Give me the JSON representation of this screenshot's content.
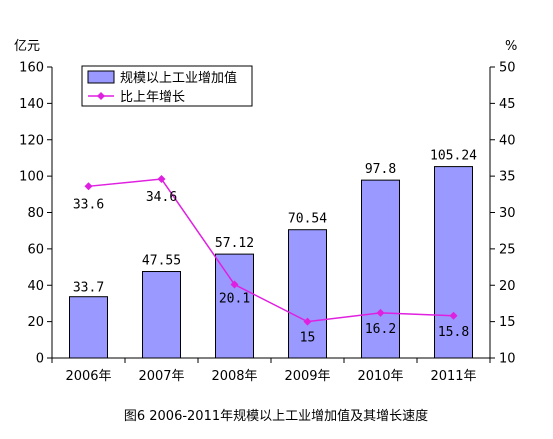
{
  "chart_data": {
    "type": "bar",
    "categories": [
      "2006年",
      "2007年",
      "2008年",
      "2009年",
      "2010年",
      "2011年"
    ],
    "series": [
      {
        "name": "规模以上工业增加值",
        "type": "bar",
        "axis": "left",
        "color": "#9999ff",
        "values": [
          33.7,
          47.55,
          57.12,
          70.54,
          97.8,
          105.24
        ],
        "labels": [
          "33.7",
          "47.55",
          "57.12",
          "70.54",
          "97.8",
          "105.24"
        ]
      },
      {
        "name": "比上年增长",
        "type": "line",
        "axis": "right",
        "color": "#e020e0",
        "values": [
          33.6,
          34.6,
          20.1,
          15,
          16.2,
          15.8
        ],
        "labels": [
          "33.6",
          "34.6",
          "20.1",
          "15",
          "16.2",
          "15.8"
        ]
      }
    ],
    "y_left": {
      "unit": "亿元",
      "min": 0,
      "max": 160,
      "step": 20
    },
    "y_right": {
      "unit": "%",
      "min": 10,
      "max": 50,
      "step": 5
    },
    "legend": {
      "position": "top-left"
    },
    "grid": false,
    "caption": "图6   2006-2011年规模以上工业增加值及其增长速度"
  }
}
